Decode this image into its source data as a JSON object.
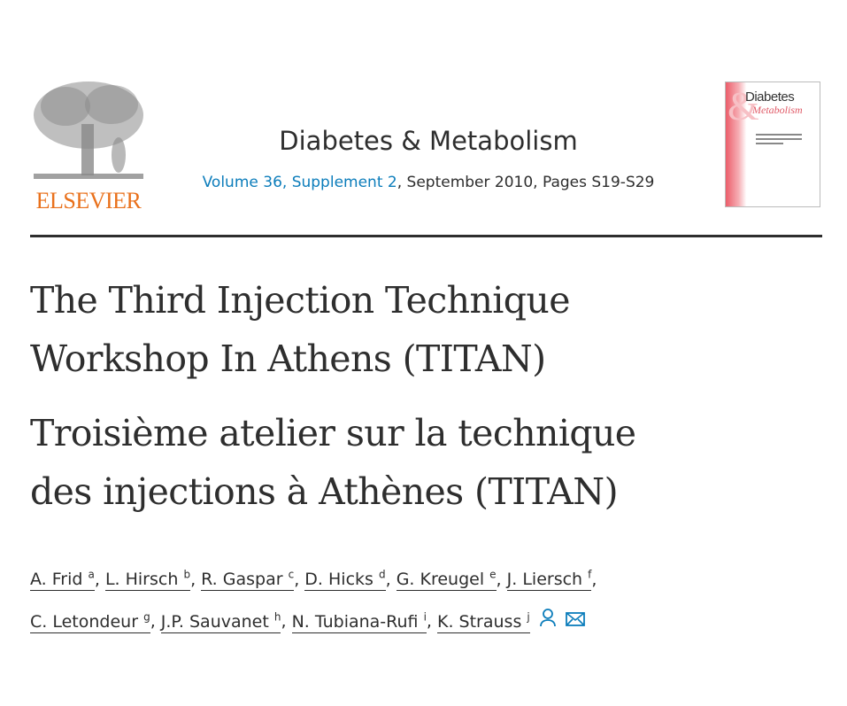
{
  "publisher": {
    "logo_text": "ELSEVIER",
    "logo_color": "#e9711c"
  },
  "journal": {
    "title": "Diabetes & Metabolism",
    "volume_link": "Volume 36, Supplement 2",
    "meta_rest": ", September 2010, Pages S19-S29",
    "link_color": "#0c7dbb"
  },
  "cover": {
    "title_line1": "Diabetes",
    "title_line2": "Metabolism",
    "amp": "&"
  },
  "article": {
    "title_en": [
      "The Third Injection Technique",
      "Workshop In Athens (TITAN)"
    ],
    "title_fr": [
      "Troisième atelier sur la technique",
      "des injections à Athènes (TITAN)"
    ]
  },
  "authors": [
    {
      "name": "A. Frid",
      "aff": "a"
    },
    {
      "name": "L. Hirsch",
      "aff": "b"
    },
    {
      "name": "R. Gaspar",
      "aff": "c"
    },
    {
      "name": "D. Hicks",
      "aff": "d"
    },
    {
      "name": "G. Kreugel",
      "aff": "e"
    },
    {
      "name": "J. Liersch",
      "aff": "f"
    },
    {
      "name": "C. Letondeur",
      "aff": "g"
    },
    {
      "name": "J.P. Sauvanet",
      "aff": "h"
    },
    {
      "name": "N. Tubiana-Rufi",
      "aff": "i"
    },
    {
      "name": "K. Strauss",
      "aff": "j"
    }
  ],
  "icons": {
    "person": "person-icon",
    "email": "envelope-icon"
  }
}
